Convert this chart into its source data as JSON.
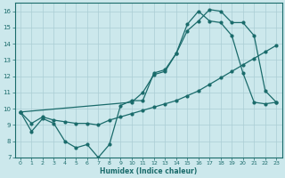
{
  "xlabel": "Humidex (Indice chaleur)",
  "bg_color": "#cce8ec",
  "grid_color": "#aacdd4",
  "line_color": "#1a6b6b",
  "xlim": [
    -0.5,
    23.5
  ],
  "ylim": [
    7,
    16.5
  ],
  "xticks": [
    0,
    1,
    2,
    3,
    4,
    5,
    6,
    7,
    8,
    9,
    10,
    11,
    12,
    13,
    14,
    15,
    16,
    17,
    18,
    19,
    20,
    21,
    22,
    23
  ],
  "yticks": [
    7,
    8,
    9,
    10,
    11,
    12,
    13,
    14,
    15,
    16
  ],
  "line1_x": [
    0,
    1,
    2,
    3,
    4,
    5,
    6,
    7,
    8,
    9,
    10,
    11,
    12,
    13,
    14,
    15,
    16,
    17,
    18,
    19,
    20,
    21,
    22,
    23
  ],
  "line1_y": [
    9.8,
    8.6,
    9.4,
    9.1,
    8.0,
    7.6,
    7.8,
    7.0,
    7.8,
    10.2,
    10.5,
    10.5,
    12.2,
    12.4,
    13.4,
    14.8,
    15.4,
    16.1,
    16.0,
    15.3,
    15.3,
    14.5,
    11.1,
    10.4
  ],
  "line2_x": [
    0,
    1,
    2,
    3,
    4,
    5,
    6,
    7,
    8,
    9,
    10,
    11,
    12,
    13,
    14,
    15,
    16,
    17,
    18,
    19,
    20,
    21,
    22,
    23
  ],
  "line2_y": [
    9.8,
    9.1,
    9.5,
    9.3,
    9.2,
    9.1,
    9.1,
    9.0,
    9.3,
    9.5,
    9.7,
    9.9,
    10.1,
    10.3,
    10.5,
    10.8,
    11.1,
    11.5,
    11.9,
    12.3,
    12.7,
    13.1,
    13.5,
    13.9
  ],
  "line3_x": [
    0,
    10,
    11,
    12,
    13,
    14,
    15,
    16,
    17,
    18,
    19,
    20,
    21,
    22,
    23
  ],
  "line3_y": [
    9.8,
    10.4,
    11.0,
    12.1,
    12.3,
    13.4,
    15.2,
    16.0,
    15.4,
    15.3,
    14.5,
    12.2,
    10.4,
    10.3,
    10.4
  ]
}
